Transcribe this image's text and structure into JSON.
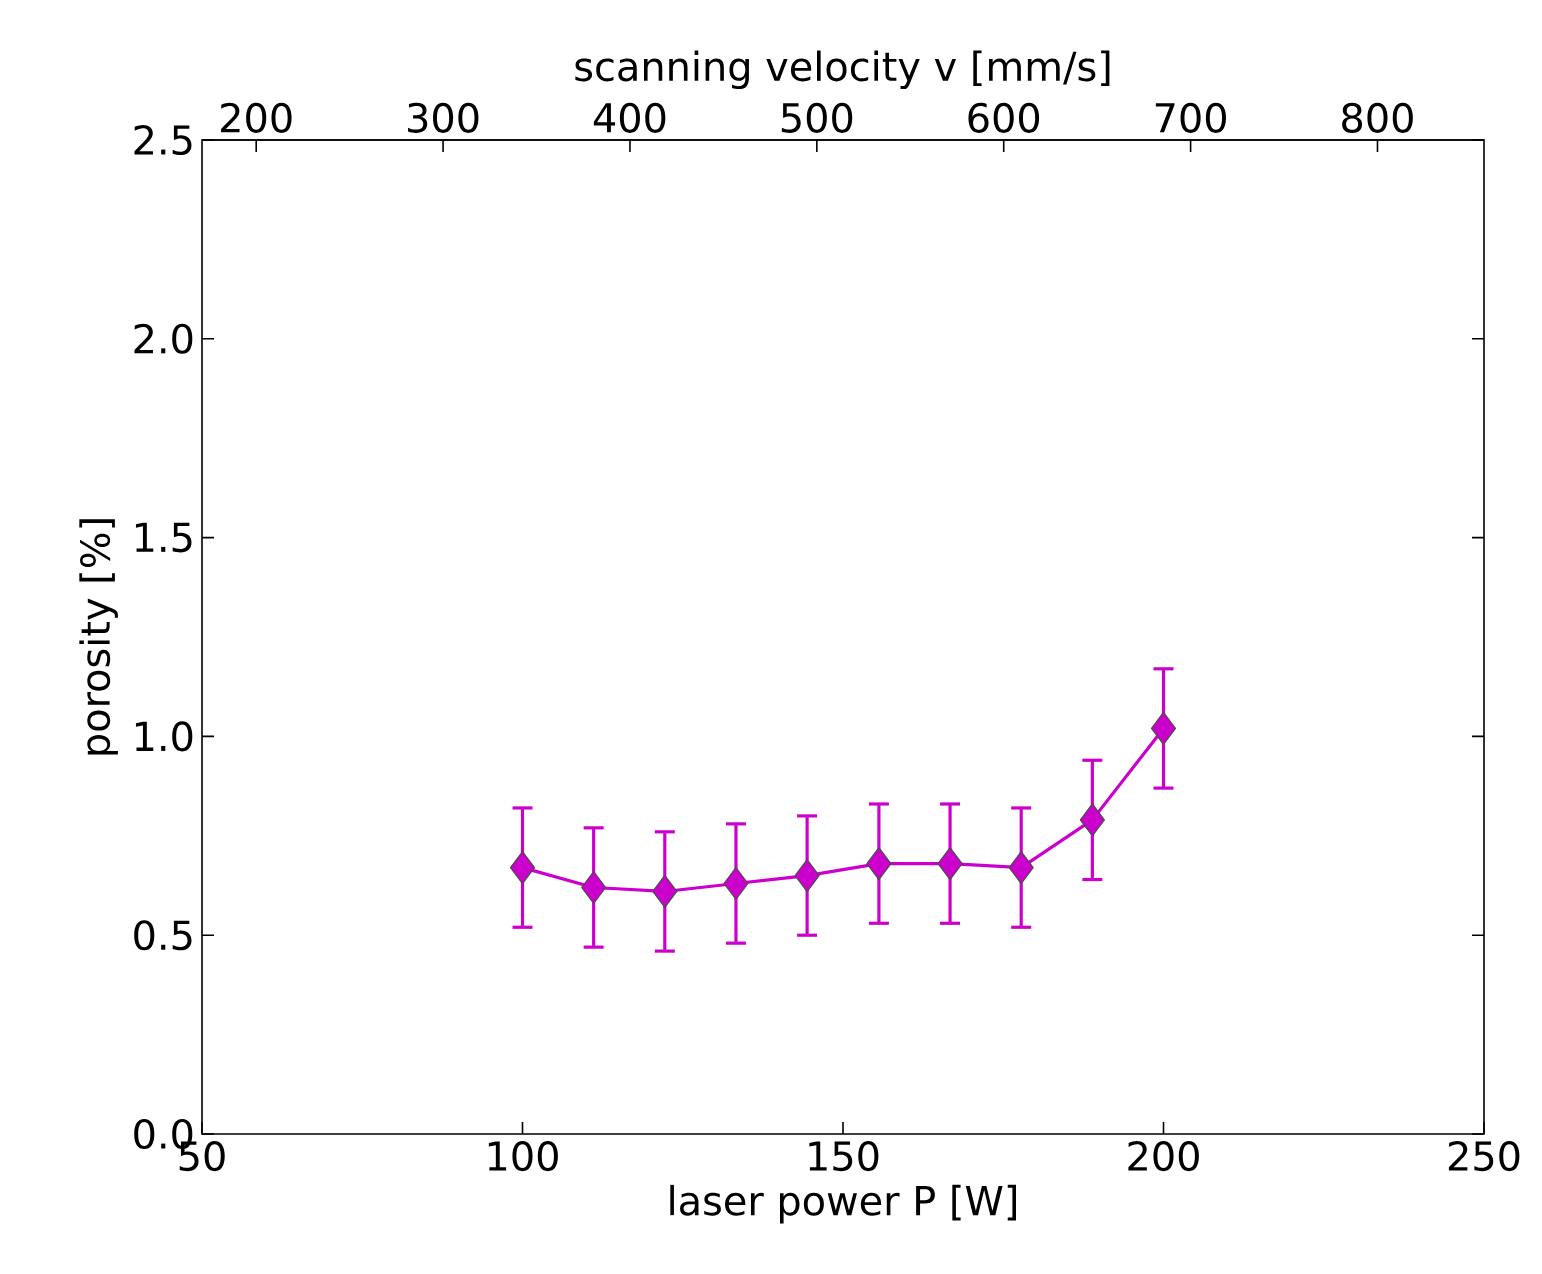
{
  "chart_data": {
    "type": "line",
    "xlabel": "laser power P [W]",
    "ylabel": "porosity [%]",
    "x2label": "scanning velocity v [mm/s]",
    "xlim": [
      50,
      250
    ],
    "xticks": [
      50,
      100,
      150,
      200,
      250
    ],
    "ylim": [
      0,
      2.5
    ],
    "yticks": [
      {
        "value": 0,
        "label": "0.0"
      },
      0.5,
      {
        "value": 1,
        "label": "1.0"
      },
      1.5,
      {
        "value": 2,
        "label": "2.0"
      },
      2.5
    ],
    "x2lim": [
      171,
      857
    ],
    "x2ticks": [
      200,
      300,
      400,
      500,
      600,
      700,
      800
    ],
    "marker": "diamond",
    "line_style": "solid",
    "grid": false,
    "series": [
      {
        "color": "#cc00cc",
        "x": [
          100,
          111.1,
          122.2,
          133.3,
          144.4,
          155.6,
          166.7,
          177.8,
          188.9,
          200
        ],
        "values": [
          0.67,
          0.62,
          0.61,
          0.63,
          0.65,
          0.68,
          0.68,
          0.67,
          0.79,
          1.02
        ],
        "errors": [
          0.15,
          0.15,
          0.15,
          0.15,
          0.15,
          0.15,
          0.15,
          0.15,
          0.15,
          0.15
        ]
      }
    ]
  }
}
